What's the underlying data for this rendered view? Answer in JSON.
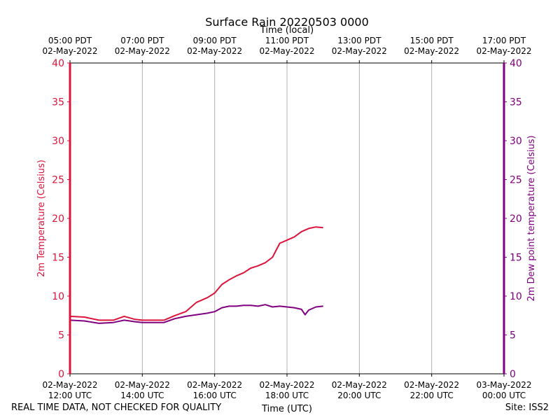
{
  "chart_data": {
    "type": "line",
    "title": "Surface Rain 20220503 0000",
    "xlabel": "Time (UTC)",
    "x2label": "Time (local)",
    "ylabel": "2m Temperature (Celsius)",
    "y2label": "2m Dew point temperature (Celsius)",
    "ylim": [
      0,
      40
    ],
    "y2lim": [
      0,
      40
    ],
    "yticks": [
      "0",
      "5",
      "10",
      "15",
      "20",
      "25",
      "30",
      "35",
      "40"
    ],
    "xlim_hours_utc": [
      12,
      24
    ],
    "xticks_utc": [
      {
        "date": "02-May-2022",
        "time": "12:00 UTC"
      },
      {
        "date": "02-May-2022",
        "time": "14:00 UTC"
      },
      {
        "date": "02-May-2022",
        "time": "16:00 UTC"
      },
      {
        "date": "02-May-2022",
        "time": "18:00 UTC"
      },
      {
        "date": "02-May-2022",
        "time": "20:00 UTC"
      },
      {
        "date": "02-May-2022",
        "time": "22:00 UTC"
      },
      {
        "date": "03-May-2022",
        "time": "00:00 UTC"
      }
    ],
    "xticks_local": [
      {
        "time": "05:00 PDT",
        "date": "02-May-2022"
      },
      {
        "time": "07:00 PDT",
        "date": "02-May-2022"
      },
      {
        "time": "09:00 PDT",
        "date": "02-May-2022"
      },
      {
        "time": "11:00 PDT",
        "date": "02-May-2022"
      },
      {
        "time": "13:00 PDT",
        "date": "02-May-2022"
      },
      {
        "time": "15:00 PDT",
        "date": "02-May-2022"
      },
      {
        "time": "17:00 PDT",
        "date": "02-May-2022"
      }
    ],
    "grid": "vertical",
    "colors": {
      "temperature": "#dc143c",
      "dewpoint": "#800080"
    },
    "series": [
      {
        "key": "temperature",
        "x": [
          12.0,
          12.4,
          12.8,
          13.2,
          13.5,
          13.8,
          14.0,
          14.3,
          14.6,
          14.9,
          15.2,
          15.5,
          15.8,
          16.0,
          16.2,
          16.4,
          16.6,
          16.8,
          17.0,
          17.2,
          17.4,
          17.6,
          17.8,
          18.0,
          18.2,
          18.4,
          18.6,
          18.8,
          19.0
        ],
        "y": [
          7.4,
          7.3,
          6.9,
          6.9,
          7.4,
          7.0,
          6.9,
          6.9,
          6.9,
          7.5,
          8.0,
          9.2,
          9.8,
          10.4,
          11.5,
          12.1,
          12.6,
          13.0,
          13.6,
          13.9,
          14.3,
          15.0,
          16.8,
          17.2,
          17.6,
          18.3,
          18.7,
          18.9,
          18.8
        ]
      },
      {
        "key": "dewpoint",
        "x": [
          12.0,
          12.4,
          12.8,
          13.2,
          13.5,
          13.8,
          14.0,
          14.3,
          14.6,
          14.9,
          15.2,
          15.5,
          15.8,
          16.0,
          16.2,
          16.4,
          16.6,
          16.8,
          17.0,
          17.2,
          17.4,
          17.6,
          17.8,
          18.0,
          18.2,
          18.4,
          18.5,
          18.6,
          18.8,
          19.0
        ],
        "y": [
          6.9,
          6.8,
          6.5,
          6.6,
          6.9,
          6.7,
          6.6,
          6.6,
          6.6,
          7.1,
          7.4,
          7.6,
          7.8,
          8.0,
          8.5,
          8.7,
          8.7,
          8.8,
          8.8,
          8.7,
          8.9,
          8.6,
          8.7,
          8.6,
          8.5,
          8.3,
          7.6,
          8.2,
          8.6,
          8.7
        ]
      }
    ]
  },
  "footer": {
    "disclaimer": "REAL TIME DATA, NOT CHECKED FOR QUALITY",
    "site": "Site: ISS2"
  }
}
